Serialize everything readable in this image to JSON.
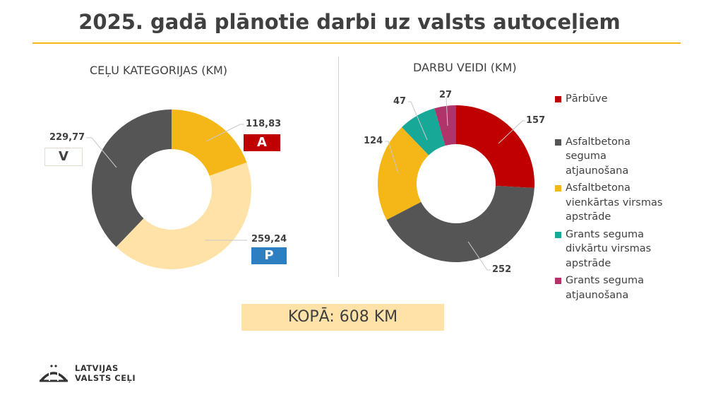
{
  "title": "2025. gadā plānotie darbi uz valsts autoceļiem",
  "chart_data": [
    {
      "type": "pie",
      "subtype": "donut",
      "title": "CEĻU KATEGORIJAS (KM)",
      "categories": [
        "A",
        "P",
        "V"
      ],
      "labels": [
        "118,83",
        "259,24",
        "229,77"
      ],
      "values": [
        118.83,
        259.24,
        229.77
      ],
      "colors": [
        "#F5B718",
        "#FFE2A8",
        "#555555"
      ]
    },
    {
      "type": "pie",
      "subtype": "donut",
      "title": "DARBU VEIDI (KM)",
      "categories": [
        "Pārbūve",
        "Asfaltbetona seguma atjaunošana",
        "Asfaltbetona vienkārtas virsmas apstrāde",
        "Grants seguma divkārtu virsmas apstrāde",
        "Grants seguma atjaunošana"
      ],
      "labels": [
        "157",
        "252",
        "124",
        "47",
        "27"
      ],
      "values": [
        157,
        252,
        124,
        47,
        27
      ],
      "colors": [
        "#C00000",
        "#555555",
        "#F5B718",
        "#17A898",
        "#B0346A"
      ],
      "legend": "right"
    }
  ],
  "badges": {
    "A": "A",
    "P": "P",
    "V": "V",
    "A_color": "#C00000",
    "P_color": "#2E7FC1"
  },
  "total": "KOPĀ: 608 KM",
  "logo": {
    "line1": "LATVIJAS",
    "line2": "VALSTS CEĻI"
  }
}
